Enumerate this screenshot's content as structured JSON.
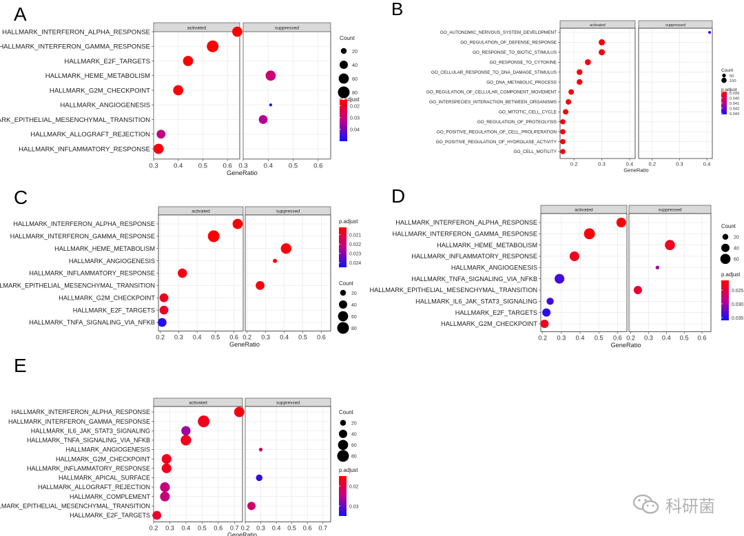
{
  "chart_data": [
    {
      "panel": "A",
      "type": "scatter",
      "facets": [
        "activated",
        "suppressed"
      ],
      "xlabel": "GeneRatio",
      "xlim": [
        0.3,
        0.65
      ],
      "xticks": [
        "0.3",
        "0.4",
        "0.5",
        "0.6"
      ],
      "categories": [
        "HALLMARK_INTERFERON_ALPHA_RESPONSE",
        "HALLMARK_INTERFERON_GAMMA_RESPONSE",
        "HALLMARK_E2F_TARGETS",
        "HALLMARK_HEME_METABOLISM",
        "HALLMARK_G2M_CHECKPOINT",
        "HALLMARK_ANGIOGENESIS",
        "HALLMARK_EPITHELIAL_MESENCHYMAL_TRANSITION",
        "HALLMARK_ALLOGRAFT_REJECTION",
        "HALLMARK_INFLAMMATORY_RESPONSE"
      ],
      "points": [
        {
          "term": 0,
          "facet": 0,
          "x": 0.64,
          "count": 60,
          "p": 0.015
        },
        {
          "term": 1,
          "facet": 0,
          "x": 0.54,
          "count": 80,
          "p": 0.015
        },
        {
          "term": 2,
          "facet": 0,
          "x": 0.44,
          "count": 60,
          "p": 0.016
        },
        {
          "term": 3,
          "facet": 1,
          "x": 0.41,
          "count": 60,
          "p": 0.03
        },
        {
          "term": 4,
          "facet": 0,
          "x": 0.4,
          "count": 60,
          "p": 0.016
        },
        {
          "term": 5,
          "facet": 1,
          "x": 0.41,
          "count": 5,
          "p": 0.05
        },
        {
          "term": 6,
          "facet": 1,
          "x": 0.38,
          "count": 45,
          "p": 0.034
        },
        {
          "term": 7,
          "facet": 0,
          "x": 0.33,
          "count": 45,
          "p": 0.032
        },
        {
          "term": 8,
          "facet": 0,
          "x": 0.32,
          "count": 60,
          "p": 0.017
        }
      ],
      "count_legend": {
        "title": "Count",
        "values": [
          20,
          40,
          60,
          80
        ]
      },
      "p_legend": {
        "title": "p.adjust",
        "labels": [
          "0.02",
          "0.03",
          "0.04"
        ],
        "domain": [
          0.015,
          0.05
        ],
        "ticks": [
          0.02,
          0.03,
          0.04
        ]
      }
    },
    {
      "panel": "B",
      "type": "scatter",
      "facets": [
        "activated",
        "suppressed"
      ],
      "xlabel": "GeneRatio",
      "xlim": [
        0.15,
        0.42
      ],
      "xticks": [
        "0.2",
        "0.3",
        "0.4"
      ],
      "categories": [
        "GO_AUTONOMIC_NERVOUS_SYSTEM_DEVELOPMENT",
        "GO_REGULATION_OF_DEFENSE_RESPONSE",
        "GO_RESPONSE_TO_BIOTIC_STIMULUS",
        "GO_RESPONSE_TO_CYTOKINE",
        "GO_CELLULAR_RESPONSE_TO_DNA_DAMAGE_STIMULUS",
        "GO_DNA_METABOLIC_PROCESS",
        "GO_REGULATION_OF_CELLULAR_COMPONENT_MOVEMENT",
        "GO_INTERSPECIES_INTERACTION_BETWEEN_ORGANISMS",
        "GO_MITOTIC_CELL_CYCLE",
        "GO_REGULATION_OF_PROTEOLYSIS",
        "GO_POSITIVE_REGULATION_OF_CELL_PROLIFERATION",
        "GO_POSITIVE_REGULATION_OF_HYDROLASE_ACTIVITY",
        "GO_CELL_MOTILITY"
      ],
      "points": [
        {
          "term": 0,
          "facet": 1,
          "x": 0.41,
          "count": 20,
          "p": 0.043
        },
        {
          "term": 1,
          "facet": 0,
          "x": 0.3,
          "count": 140,
          "p": 0.039
        },
        {
          "term": 2,
          "facet": 0,
          "x": 0.3,
          "count": 140,
          "p": 0.039
        },
        {
          "term": 3,
          "facet": 0,
          "x": 0.25,
          "count": 130,
          "p": 0.039
        },
        {
          "term": 4,
          "facet": 0,
          "x": 0.22,
          "count": 120,
          "p": 0.039
        },
        {
          "term": 5,
          "facet": 0,
          "x": 0.22,
          "count": 120,
          "p": 0.039
        },
        {
          "term": 6,
          "facet": 0,
          "x": 0.19,
          "count": 110,
          "p": 0.039
        },
        {
          "term": 7,
          "facet": 0,
          "x": 0.18,
          "count": 110,
          "p": 0.039
        },
        {
          "term": 8,
          "facet": 0,
          "x": 0.17,
          "count": 110,
          "p": 0.039
        },
        {
          "term": 9,
          "facet": 0,
          "x": 0.16,
          "count": 100,
          "p": 0.039
        },
        {
          "term": 10,
          "facet": 0,
          "x": 0.16,
          "count": 100,
          "p": 0.039
        },
        {
          "term": 11,
          "facet": 0,
          "x": 0.16,
          "count": 100,
          "p": 0.039
        },
        {
          "term": 12,
          "facet": 0,
          "x": 0.16,
          "count": 100,
          "p": 0.039
        }
      ],
      "count_legend": {
        "title": "Count",
        "values": [
          50,
          100
        ]
      },
      "p_legend": {
        "title": "p.adjust",
        "labels": [
          "0.039",
          "0.040",
          "0.041",
          "0.042",
          "0.043"
        ],
        "domain": [
          0.0388,
          0.0432
        ],
        "ticks": [
          0.039,
          0.04,
          0.041,
          0.042,
          0.043
        ]
      }
    },
    {
      "panel": "C",
      "type": "scatter",
      "facets": [
        "activated",
        "suppressed"
      ],
      "xlabel": "GeneRatio",
      "xlim": [
        0.19,
        0.65
      ],
      "xticks": [
        "0.2",
        "0.3",
        "0.4",
        "0.5",
        "0.6"
      ],
      "categories": [
        "HALLMARK_INTERFERON_ALPHA_RESPONSE",
        "HALLMARK_INTERFERON_GAMMA_RESPONSE",
        "HALLMARK_HEME_METABOLISM",
        "HALLMARK_ANGIOGENESIS",
        "HALLMARK_INFLAMMATORY_RESPONSE",
        "HALLMARK_EPITHELIAL_MESENCHYMAL_TRANSITION",
        "HALLMARK_G2M_CHECKPOINT",
        "HALLMARK_E2F_TARGETS",
        "HALLMARK_TNFA_SIGNALING_VIA_NFKB"
      ],
      "points": [
        {
          "term": 0,
          "facet": 0,
          "x": 0.62,
          "count": 60,
          "p": 0.0202
        },
        {
          "term": 1,
          "facet": 0,
          "x": 0.49,
          "count": 80,
          "p": 0.0202
        },
        {
          "term": 2,
          "facet": 1,
          "x": 0.41,
          "count": 65,
          "p": 0.0203
        },
        {
          "term": 3,
          "facet": 1,
          "x": 0.35,
          "count": 10,
          "p": 0.0203
        },
        {
          "term": 4,
          "facet": 0,
          "x": 0.32,
          "count": 50,
          "p": 0.0205
        },
        {
          "term": 5,
          "facet": 1,
          "x": 0.27,
          "count": 45,
          "p": 0.0204
        },
        {
          "term": 6,
          "facet": 0,
          "x": 0.22,
          "count": 45,
          "p": 0.0207
        },
        {
          "term": 7,
          "facet": 0,
          "x": 0.22,
          "count": 45,
          "p": 0.0209
        },
        {
          "term": 8,
          "facet": 0,
          "x": 0.21,
          "count": 45,
          "p": 0.0243
        }
      ],
      "count_legend": {
        "title": "Count",
        "values": [
          20,
          40,
          60,
          80
        ]
      },
      "p_legend": {
        "title": "p.adjust",
        "labels": [
          "0.021",
          "0.022",
          "0.023",
          "0.024"
        ],
        "domain": [
          0.0202,
          0.0245
        ],
        "ticks": [
          0.021,
          0.022,
          0.023,
          0.024
        ]
      }
    },
    {
      "panel": "D",
      "type": "scatter",
      "facets": [
        "activated",
        "suppressed"
      ],
      "xlabel": "GeneRatio",
      "xlim": [
        0.19,
        0.65
      ],
      "xticks": [
        "0.2",
        "0.3",
        "0.4",
        "0.5",
        "0.6"
      ],
      "categories": [
        "HALLMARK_INTERFERON_ALPHA_RESPONSE",
        "HALLMARK_INTERFERON_GAMMA_RESPONSE",
        "HALLMARK_HEME_METABOLISM",
        "HALLMARK_INFLAMMATORY_RESPONSE",
        "HALLMARK_ANGIOGENESIS",
        "HALLMARK_TNFA_SIGNALING_VIA_NFKB",
        "HALLMARK_EPITHELIAL_MESENCHYMAL_TRANSITION",
        "HALLMARK_IL6_JAK_STAT3_SIGNALING",
        "HALLMARK_E2F_TARGETS",
        "HALLMARK_G2M_CHECKPOINT"
      ],
      "points": [
        {
          "term": 0,
          "facet": 0,
          "x": 0.62,
          "count": 55,
          "p": 0.022
        },
        {
          "term": 1,
          "facet": 0,
          "x": 0.45,
          "count": 70,
          "p": 0.022
        },
        {
          "term": 2,
          "facet": 1,
          "x": 0.42,
          "count": 60,
          "p": 0.023
        },
        {
          "term": 3,
          "facet": 0,
          "x": 0.37,
          "count": 55,
          "p": 0.023
        },
        {
          "term": 4,
          "facet": 1,
          "x": 0.35,
          "count": 8,
          "p": 0.03
        },
        {
          "term": 5,
          "facet": 0,
          "x": 0.29,
          "count": 55,
          "p": 0.034
        },
        {
          "term": 6,
          "facet": 1,
          "x": 0.24,
          "count": 40,
          "p": 0.024
        },
        {
          "term": 7,
          "facet": 0,
          "x": 0.24,
          "count": 30,
          "p": 0.034
        },
        {
          "term": 8,
          "facet": 0,
          "x": 0.22,
          "count": 40,
          "p": 0.035
        },
        {
          "term": 9,
          "facet": 0,
          "x": 0.21,
          "count": 40,
          "p": 0.023
        }
      ],
      "count_legend": {
        "title": "Count",
        "values": [
          20,
          40,
          60
        ]
      },
      "p_legend": {
        "title": "p.adjust",
        "labels": [
          "0.025",
          "0.030",
          "0.035"
        ],
        "domain": [
          0.0215,
          0.036
        ],
        "ticks": [
          0.025,
          0.03,
          0.035
        ]
      }
    },
    {
      "panel": "E",
      "type": "scatter",
      "facets": [
        "activated",
        "suppressed"
      ],
      "xlabel": "GeneRatio",
      "xlim": [
        0.2,
        0.75
      ],
      "xticks": [
        "0.2",
        "0.3",
        "0.4",
        "0.5",
        "0.6",
        "0.7"
      ],
      "categories": [
        "HALLMARK_INTERFERON_ALPHA_RESPONSE",
        "HALLMARK_INTERFERON_GAMMA_RESPONSE",
        "HALLMARK_IL6_JAK_STAT3_SIGNALING",
        "HALLMARK_TNFA_SIGNALING_VIA_NFKB",
        "HALLMARK_ANGIOGENESIS",
        "HALLMARK_G2M_CHECKPOINT",
        "HALLMARK_INFLAMMATORY_RESPONSE",
        "HALLMARK_APICAL_SURFACE",
        "HALLMARK_ALLOGRAFT_REJECTION",
        "HALLMARK_COMPLEMENT",
        "HALLMARK_EPITHELIAL_MESENCHYMAL_TRANSITION",
        "HALLMARK_E2F_TARGETS"
      ],
      "points": [
        {
          "term": 0,
          "facet": 0,
          "x": 0.73,
          "count": 60,
          "p": 0.016
        },
        {
          "term": 1,
          "facet": 0,
          "x": 0.51,
          "count": 80,
          "p": 0.017
        },
        {
          "term": 2,
          "facet": 0,
          "x": 0.4,
          "count": 50,
          "p": 0.027
        },
        {
          "term": 3,
          "facet": 0,
          "x": 0.4,
          "count": 65,
          "p": 0.017
        },
        {
          "term": 4,
          "facet": 1,
          "x": 0.3,
          "count": 8,
          "p": 0.022
        },
        {
          "term": 5,
          "facet": 0,
          "x": 0.28,
          "count": 55,
          "p": 0.017
        },
        {
          "term": 6,
          "facet": 0,
          "x": 0.28,
          "count": 55,
          "p": 0.017
        },
        {
          "term": 7,
          "facet": 1,
          "x": 0.29,
          "count": 25,
          "p": 0.033
        },
        {
          "term": 8,
          "facet": 0,
          "x": 0.27,
          "count": 55,
          "p": 0.024
        },
        {
          "term": 9,
          "facet": 0,
          "x": 0.27,
          "count": 55,
          "p": 0.024
        },
        {
          "term": 10,
          "facet": 1,
          "x": 0.24,
          "count": 40,
          "p": 0.023
        },
        {
          "term": 11,
          "facet": 0,
          "x": 0.22,
          "count": 45,
          "p": 0.018
        }
      ],
      "count_legend": {
        "title": "Count",
        "values": [
          20,
          40,
          60,
          80
        ]
      },
      "p_legend": {
        "title": "p.adjust",
        "labels": [
          "0.02",
          "0.03"
        ],
        "domain": [
          0.015,
          0.035
        ],
        "ticks": [
          0.02,
          0.03
        ]
      }
    }
  ],
  "watermark": {
    "text": "科研菌",
    "icon": "wechat-icon"
  }
}
